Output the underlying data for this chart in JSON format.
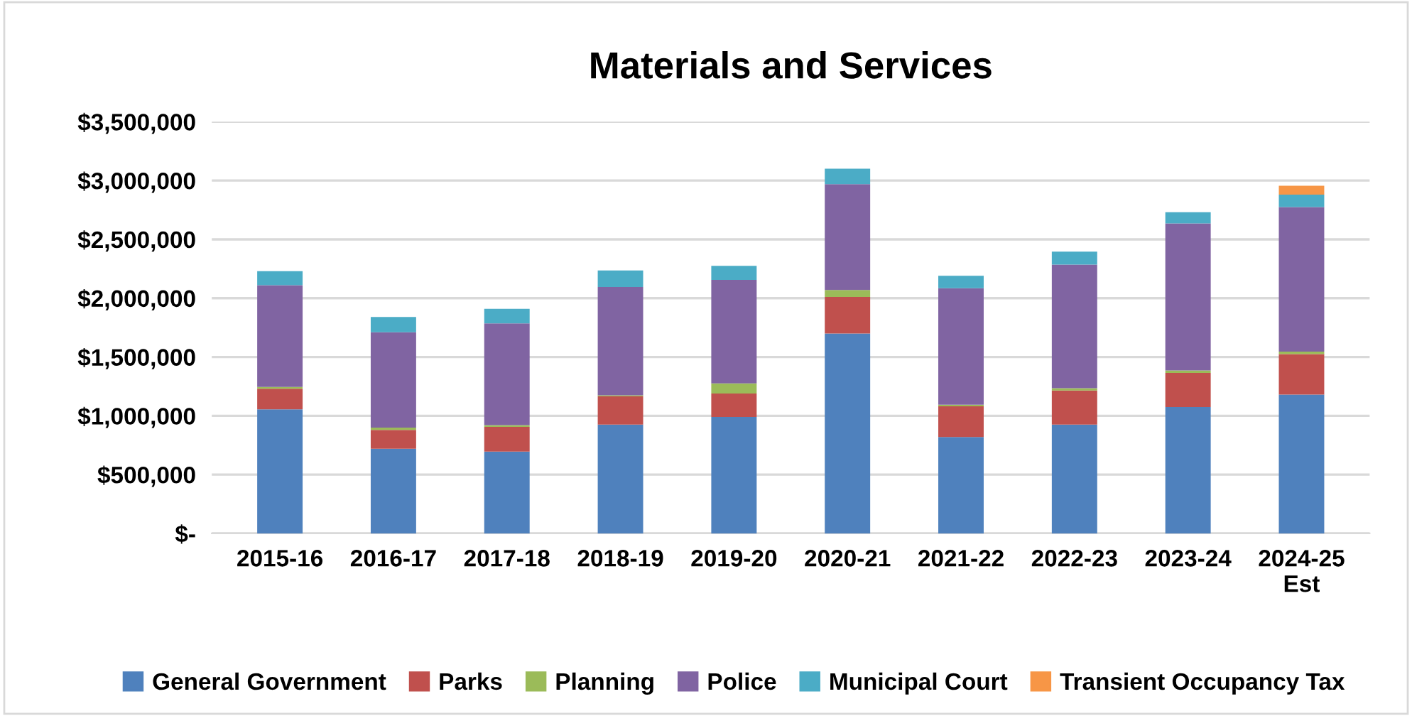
{
  "chart_data": {
    "type": "bar",
    "stacked": true,
    "title": "Materials and Services",
    "categories": [
      "2015-16",
      "2016-17",
      "2017-18",
      "2018-19",
      "2019-20",
      "2020-21",
      "2021-22",
      "2022-23",
      "2023-24",
      "2024-25\nEst"
    ],
    "series": [
      {
        "name": "General Government",
        "color": "#4f81bd",
        "values": [
          1055000,
          720000,
          695000,
          925000,
          990000,
          1700000,
          820000,
          925000,
          1075000,
          1180000
        ]
      },
      {
        "name": "Parks",
        "color": "#c0504d",
        "values": [
          175000,
          160000,
          210000,
          240000,
          200000,
          310000,
          260000,
          290000,
          290000,
          345000
        ]
      },
      {
        "name": "Planning",
        "color": "#9bbb59",
        "values": [
          15000,
          20000,
          15000,
          10000,
          85000,
          60000,
          15000,
          20000,
          20000,
          20000
        ]
      },
      {
        "name": "Police",
        "color": "#8064a2",
        "values": [
          865000,
          810000,
          865000,
          920000,
          880000,
          900000,
          990000,
          1050000,
          1250000,
          1230000
        ]
      },
      {
        "name": "Municipal Court",
        "color": "#4bacc6",
        "values": [
          120000,
          130000,
          125000,
          140000,
          120000,
          130000,
          105000,
          110000,
          95000,
          105000
        ]
      },
      {
        "name": "Transient Occupancy Tax",
        "color": "#f79646",
        "values": [
          null,
          null,
          null,
          null,
          null,
          null,
          null,
          null,
          null,
          75000
        ]
      }
    ],
    "ylim": [
      0,
      3500000
    ],
    "yticks": [
      {
        "value": 0,
        "label": "$-"
      },
      {
        "value": 500000,
        "label": "$500,000"
      },
      {
        "value": 1000000,
        "label": "$1,000,000"
      },
      {
        "value": 1500000,
        "label": "$1,500,000"
      },
      {
        "value": 2000000,
        "label": "$2,000,000"
      },
      {
        "value": 2500000,
        "label": "$2,500,000"
      },
      {
        "value": 3000000,
        "label": "$3,000,000"
      },
      {
        "value": 3500000,
        "label": "$3,500,000"
      }
    ],
    "grid": "y",
    "legend": "bottom"
  }
}
